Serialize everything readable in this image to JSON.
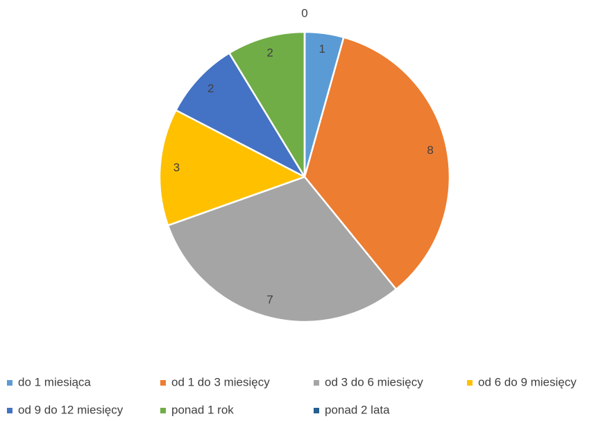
{
  "chart_data": {
    "type": "pie",
    "categories": [
      "do 1 miesiąca",
      "od 1 do 3 miesięcy",
      "od 3 do 6 miesięcy",
      "od 6 do 9 miesięcy",
      "od 9 do 12 miesięcy",
      "ponad 1 rok",
      "ponad 2 lata"
    ],
    "values": [
      1,
      8,
      7,
      3,
      2,
      2,
      0
    ],
    "colors": [
      "#5b9bd5",
      "#ed7d31",
      "#a5a5a5",
      "#ffc000",
      "#4472c4",
      "#70ad47",
      "#255e91"
    ],
    "legend": "bottom"
  }
}
